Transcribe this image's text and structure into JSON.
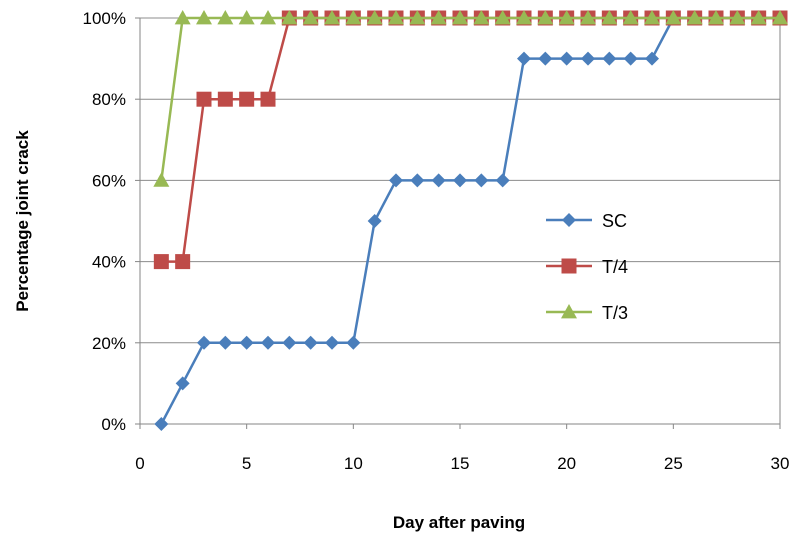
{
  "chart_data": {
    "type": "line",
    "xlabel": "Day after paving",
    "ylabel": "Percentage joint crack",
    "xlim": [
      0,
      30
    ],
    "ylim": [
      0,
      100
    ],
    "xticks": [
      0,
      5,
      10,
      15,
      20,
      25,
      30
    ],
    "yticks": [
      0,
      20,
      40,
      60,
      80,
      100
    ],
    "ytick_format": "percent",
    "grid": "horizontal",
    "legend_position": "right",
    "series": [
      {
        "name": "SC",
        "color": "#4A7EBB",
        "marker": "diamond",
        "x": [
          1,
          2,
          3,
          4,
          5,
          6,
          7,
          8,
          9,
          10,
          11,
          12,
          13,
          14,
          15,
          16,
          17,
          18,
          19,
          20,
          21,
          22,
          23,
          24,
          25,
          26,
          27,
          28,
          29,
          30
        ],
        "y": [
          0,
          10,
          20,
          20,
          20,
          20,
          20,
          20,
          20,
          20,
          50,
          60,
          60,
          60,
          60,
          60,
          60,
          90,
          90,
          90,
          90,
          90,
          90,
          90,
          100,
          100,
          100,
          100,
          100,
          100
        ]
      },
      {
        "name": "T/4",
        "color": "#BE4B48",
        "marker": "square",
        "x": [
          1,
          2,
          3,
          4,
          5,
          6,
          7,
          8,
          9,
          10,
          11,
          12,
          13,
          14,
          15,
          16,
          17,
          18,
          19,
          20,
          21,
          22,
          23,
          24,
          25,
          26,
          27,
          28,
          29,
          30
        ],
        "y": [
          40,
          40,
          80,
          80,
          80,
          80,
          100,
          100,
          100,
          100,
          100,
          100,
          100,
          100,
          100,
          100,
          100,
          100,
          100,
          100,
          100,
          100,
          100,
          100,
          100,
          100,
          100,
          100,
          100,
          100
        ]
      },
      {
        "name": "T/3",
        "color": "#98B954",
        "marker": "triangle",
        "x": [
          1,
          2,
          3,
          4,
          5,
          6,
          7,
          8,
          9,
          10,
          11,
          12,
          13,
          14,
          15,
          16,
          17,
          18,
          19,
          20,
          21,
          22,
          23,
          24,
          25,
          26,
          27,
          28,
          29,
          30
        ],
        "y": [
          60,
          100,
          100,
          100,
          100,
          100,
          100,
          100,
          100,
          100,
          100,
          100,
          100,
          100,
          100,
          100,
          100,
          100,
          100,
          100,
          100,
          100,
          100,
          100,
          100,
          100,
          100,
          100,
          100,
          100
        ]
      }
    ]
  }
}
